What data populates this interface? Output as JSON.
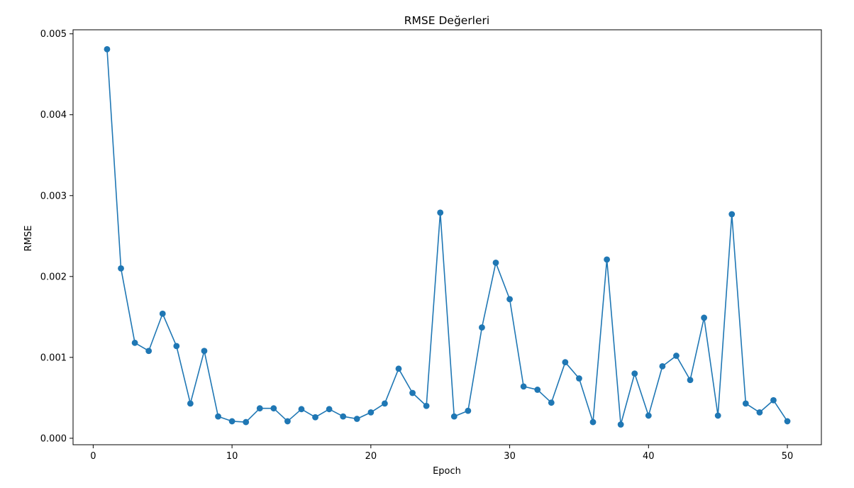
{
  "chart_data": {
    "type": "line",
    "title": "RMSE Değerleri",
    "xlabel": "Epoch",
    "ylabel": "RMSE",
    "xlim": [
      -1.45,
      52.45
    ],
    "ylim": [
      -8e-05,
      0.00505
    ],
    "xticks": [
      0,
      10,
      20,
      30,
      40,
      50
    ],
    "xtick_labels": [
      "0",
      "10",
      "20",
      "30",
      "40",
      "50"
    ],
    "yticks": [
      0.0,
      0.001,
      0.002,
      0.003,
      0.004,
      0.005
    ],
    "ytick_labels": [
      "0.000",
      "0.001",
      "0.002",
      "0.003",
      "0.004",
      "0.005"
    ],
    "grid": false,
    "series": [
      {
        "color": "#1f77b4",
        "marker": "circle",
        "x": [
          1,
          2,
          3,
          4,
          5,
          6,
          7,
          8,
          9,
          10,
          11,
          12,
          13,
          14,
          15,
          16,
          17,
          18,
          19,
          20,
          21,
          22,
          23,
          24,
          25,
          26,
          27,
          28,
          29,
          30,
          31,
          32,
          33,
          34,
          35,
          36,
          37,
          38,
          39,
          40,
          41,
          42,
          43,
          44,
          45,
          46,
          47,
          48,
          49,
          50
        ],
        "y": [
          0.00481,
          0.0021,
          0.00118,
          0.00108,
          0.00154,
          0.00114,
          0.00043,
          0.00108,
          0.00027,
          0.00021,
          0.0002,
          0.00037,
          0.00037,
          0.00021,
          0.00036,
          0.00026,
          0.00036,
          0.00027,
          0.00024,
          0.00032,
          0.00043,
          0.00086,
          0.00056,
          0.0004,
          0.00279,
          0.00027,
          0.00034,
          0.00137,
          0.00217,
          0.00172,
          0.00064,
          0.0006,
          0.00044,
          0.00094,
          0.00074,
          0.0002,
          0.00221,
          0.00017,
          0.0008,
          0.00028,
          0.00089,
          0.00102,
          0.00072,
          0.00149,
          0.00028,
          0.00277,
          0.00043,
          0.00032,
          0.00047,
          0.00021
        ]
      }
    ]
  }
}
